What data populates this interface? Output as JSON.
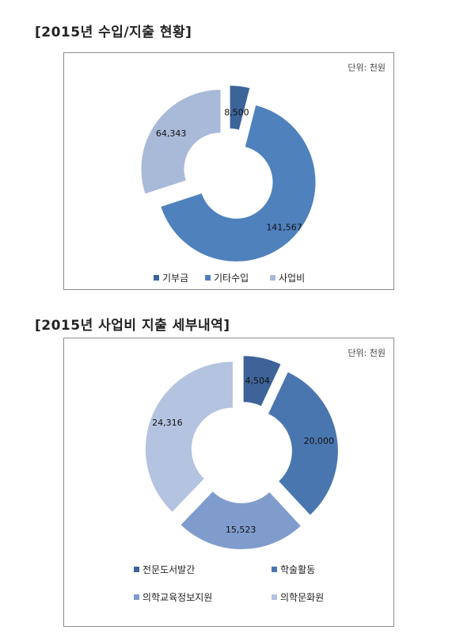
{
  "charts": [
    {
      "title": "[2015년 수입/지출 현황]",
      "unit_label": "단위: 천원",
      "chart_data": {
        "type": "pie",
        "subtype": "donut-exploded",
        "categories": [
          "기부금",
          "기타수입",
          "사업비"
        ],
        "values": [
          8500,
          141567,
          64343
        ],
        "value_labels": [
          "8,500",
          "141,567",
          "64,343"
        ],
        "colors": [
          "#3b6499",
          "#4f81bd",
          "#a9b9d8"
        ],
        "legend_position": "bottom"
      }
    },
    {
      "title": "[2015년 사업비 지출 세부내역]",
      "unit_label": "단위: 천원",
      "chart_data": {
        "type": "pie",
        "subtype": "donut-exploded",
        "categories": [
          "전문도서발간",
          "학술활동",
          "의학교육정보지원",
          "의학문화원"
        ],
        "values": [
          4504,
          20000,
          15523,
          24316
        ],
        "value_labels": [
          "4,504",
          "20,000",
          "15,523",
          "24,316"
        ],
        "colors": [
          "#3d6398",
          "#4a76b0",
          "#7f9ccc",
          "#b4c3df"
        ],
        "legend_position": "bottom"
      }
    }
  ]
}
